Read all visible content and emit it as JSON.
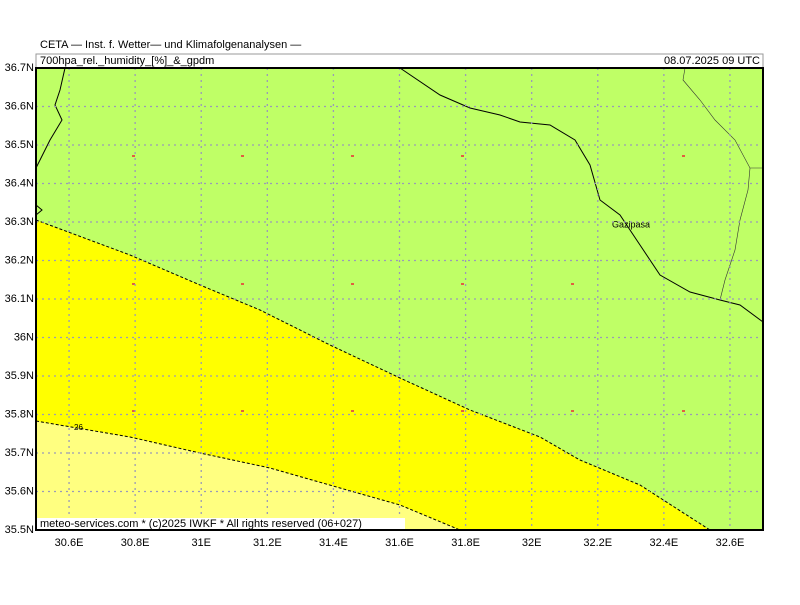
{
  "header": {
    "title": "CETA — Inst. f. Wetter— und Klimafolgenanalysen —",
    "product": "700hpa_rel._humidity_[%]_&_gpdm",
    "valid_time": "08.07.2025 09 UTC"
  },
  "map": {
    "xlim": [
      30.5,
      32.7
    ],
    "ylim": [
      35.5,
      36.7
    ],
    "xticks": [
      {
        "value": 30.6,
        "label": "30.6E"
      },
      {
        "value": 30.8,
        "label": "30.8E"
      },
      {
        "value": 31,
        "label": "31E"
      },
      {
        "value": 31.2,
        "label": "31.2E"
      },
      {
        "value": 31.4,
        "label": "31.4E"
      },
      {
        "value": 31.6,
        "label": "31.6E"
      },
      {
        "value": 31.8,
        "label": "31.8E"
      },
      {
        "value": 32,
        "label": "32E"
      },
      {
        "value": 32.2,
        "label": "32.2E"
      },
      {
        "value": 32.4,
        "label": "32.4E"
      },
      {
        "value": 32.6,
        "label": "32.6E"
      }
    ],
    "yticks": [
      {
        "value": 35.5,
        "label": "35.5N"
      },
      {
        "value": 35.6,
        "label": "35.6N"
      },
      {
        "value": 35.7,
        "label": "35.7N"
      },
      {
        "value": 35.8,
        "label": "35.8N"
      },
      {
        "value": 35.9,
        "label": "35.9N"
      },
      {
        "value": 36,
        "label": "36N"
      },
      {
        "value": 36.1,
        "label": "36.1N"
      },
      {
        "value": 36.2,
        "label": "36.2N"
      },
      {
        "value": 36.3,
        "label": "36.3N"
      },
      {
        "value": 36.4,
        "label": "36.4N"
      },
      {
        "value": 36.5,
        "label": "36.5N"
      },
      {
        "value": 36.6,
        "label": "36.6N"
      },
      {
        "value": 36.7,
        "label": "36.7N"
      }
    ],
    "places": [
      "Gazipasa"
    ],
    "contour_label": "26"
  },
  "footer": "meteo-services.com * (c)2025 IWKF * All rights reserved (06+027)"
}
